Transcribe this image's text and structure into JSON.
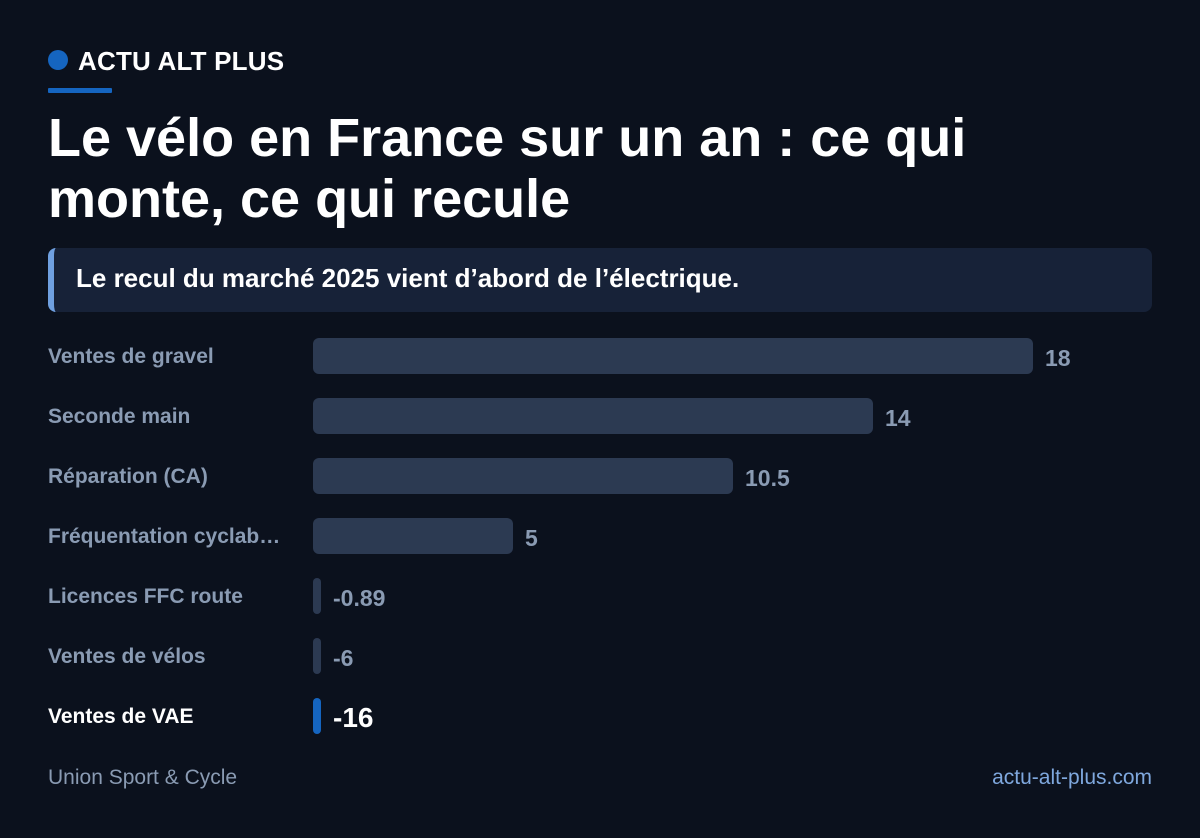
{
  "brand": {
    "name": "ACTU ALT PLUS"
  },
  "headline": "Le vélo en France sur un an : ce qui monte, ce qui recule",
  "callout": "Le recul du marché 2025 vient d’abord de l’électrique.",
  "chart_data": {
    "type": "bar",
    "orientation": "horizontal",
    "categories": [
      "Ventes de gravel",
      "Seconde main",
      "Réparation (CA)",
      "Fréquentation cyclab…",
      "Licences FFC route",
      "Ventes de vélos",
      "Ventes de VAE"
    ],
    "values": [
      18,
      14,
      10.5,
      5,
      -0.89,
      -6,
      -16
    ],
    "value_labels": [
      "18",
      "14",
      "10.5",
      "5",
      "-0.89",
      "-6",
      "-16"
    ],
    "highlight_index": 6,
    "xlim": [
      0,
      18
    ],
    "grid": false,
    "legend": "none",
    "colors": {
      "bar": "#2c3a52",
      "highlight": "#1565c0",
      "label": "#8a9bb3",
      "highlight_label": "#ffffff"
    }
  },
  "footer": {
    "source": "Union Sport & Cycle",
    "site": "actu-alt-plus.com"
  },
  "colors": {
    "background": "#0b111d",
    "accent": "#1565c0",
    "callout_bg": "#172238",
    "callout_border": "#6fa0e0"
  }
}
